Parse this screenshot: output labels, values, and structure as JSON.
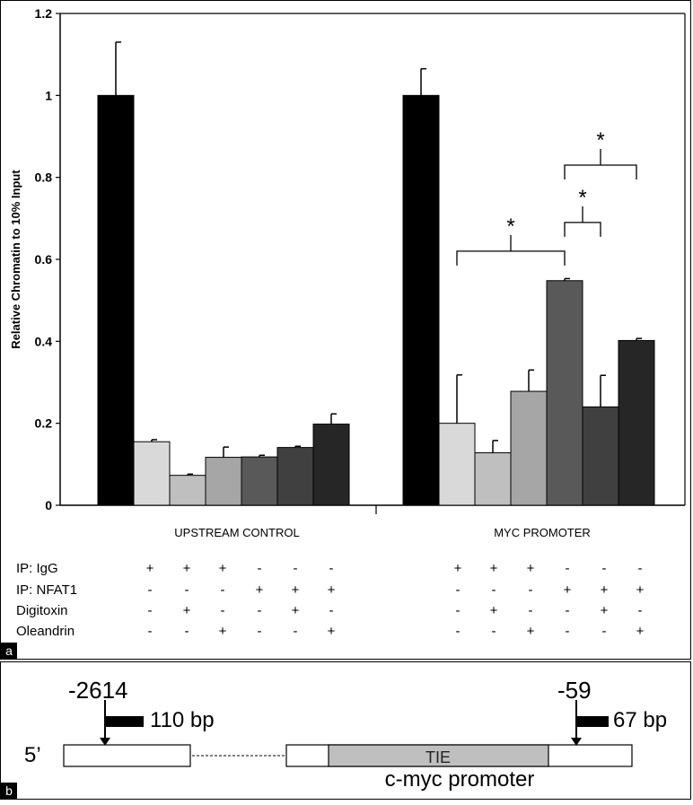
{
  "panel_a_label": "a",
  "panel_b_label": "b",
  "chart_data": {
    "type": "bar",
    "ylabel": "Relative Chromatin to 10% Input",
    "ylim": [
      0,
      1.2
    ],
    "yticks": [
      "0",
      "0.2",
      "0.4",
      "0.6",
      "0.8",
      "1",
      "1.2"
    ],
    "groups": [
      {
        "label": "UPSTREAM CONTROL",
        "bars": [
          {
            "name": "Input",
            "value": 1.0,
            "error": 0.13,
            "color": "#000000"
          },
          {
            "name": "IgG",
            "value": 0.155,
            "error": 0.005,
            "color": "#d9d9d9"
          },
          {
            "name": "IgG + Digitoxin",
            "value": 0.073,
            "error": 0.003,
            "color": "#bfbfbf"
          },
          {
            "name": "IgG + Oleandrin",
            "value": 0.117,
            "error": 0.025,
            "color": "#a6a6a6"
          },
          {
            "name": "NFAT1",
            "value": 0.118,
            "error": 0.004,
            "color": "#595959"
          },
          {
            "name": "NFAT1 + Digitoxin",
            "value": 0.141,
            "error": 0.003,
            "color": "#404040"
          },
          {
            "name": "NFAT1 + Oleandrin",
            "value": 0.198,
            "error": 0.025,
            "color": "#262626"
          }
        ]
      },
      {
        "label": "MYC PROMOTER",
        "bars": [
          {
            "name": "Input",
            "value": 1.0,
            "error": 0.065,
            "color": "#000000"
          },
          {
            "name": "IgG",
            "value": 0.2,
            "error": 0.118,
            "color": "#d9d9d9"
          },
          {
            "name": "IgG + Digitoxin",
            "value": 0.128,
            "error": 0.03,
            "color": "#bfbfbf"
          },
          {
            "name": "IgG + Oleandrin",
            "value": 0.278,
            "error": 0.052,
            "color": "#a6a6a6"
          },
          {
            "name": "NFAT1",
            "value": 0.548,
            "error": 0.005,
            "color": "#595959"
          },
          {
            "name": "NFAT1 + Digitoxin",
            "value": 0.24,
            "error": 0.077,
            "color": "#404040"
          },
          {
            "name": "NFAT1 + Oleandrin",
            "value": 0.402,
            "error": 0.005,
            "color": "#262626"
          }
        ]
      }
    ],
    "significance": [
      {
        "from_group": 1,
        "from_bar": 1,
        "to_bar": 4,
        "y": 0.62,
        "label": "*"
      },
      {
        "from_group": 1,
        "from_bar": 4,
        "to_bar": 5,
        "y": 0.69,
        "label": "*"
      },
      {
        "from_group": 1,
        "from_bar": 4,
        "to_bar": 6,
        "y": 0.83,
        "label": "*"
      }
    ],
    "condition_table": {
      "rows": [
        {
          "label": "IP: IgG",
          "signs": [
            "+",
            "+",
            "+",
            "-",
            "-",
            "-"
          ]
        },
        {
          "label": "IP: NFAT1",
          "signs": [
            "-",
            "-",
            "-",
            "+",
            "+",
            "+"
          ]
        },
        {
          "label": "Digitoxin",
          "signs": [
            "-",
            "+",
            "-",
            "-",
            "+",
            "-"
          ]
        },
        {
          "label": "Oleandrin",
          "signs": [
            "-",
            "-",
            "+",
            "-",
            "-",
            "+"
          ]
        }
      ]
    }
  },
  "diagram": {
    "five_prime": "5’",
    "upstream_position": "-2614",
    "upstream_amplicon": "110 bp",
    "promoter_position": "-59",
    "promoter_amplicon": "67 bp",
    "tie_label": "TIE",
    "promoter_label": "c-myc promoter"
  }
}
